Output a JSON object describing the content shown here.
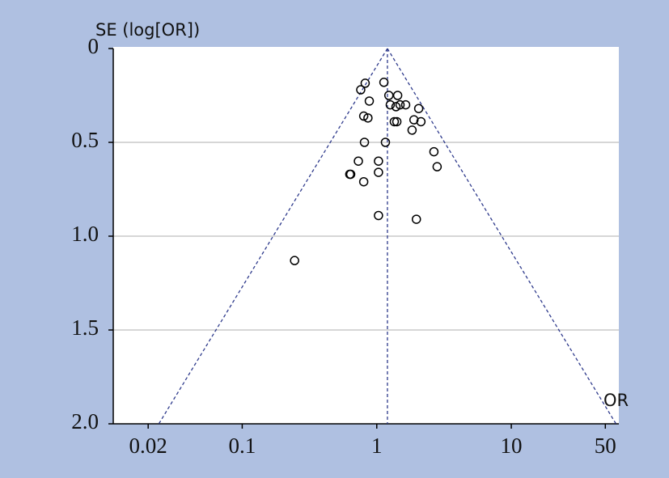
{
  "chart_data": {
    "type": "scatter",
    "ylabel": "SE (log[OR])",
    "xlabel": "OR",
    "x": [
      0.82,
      0.76,
      1.13,
      1.23,
      1.43,
      0.88,
      1.26,
      1.39,
      1.49,
      1.64,
      2.05,
      0.8,
      0.86,
      1.35,
      1.41,
      1.89,
      2.13,
      1.83,
      0.81,
      1.16,
      2.66,
      0.73,
      1.03,
      2.81,
      0.63,
      0.64,
      1.03,
      0.8,
      1.03,
      1.97,
      0.245
    ],
    "y": [
      0.185,
      0.22,
      0.18,
      0.25,
      0.25,
      0.28,
      0.3,
      0.31,
      0.3,
      0.3,
      0.32,
      0.36,
      0.37,
      0.39,
      0.39,
      0.38,
      0.39,
      0.435,
      0.5,
      0.5,
      0.55,
      0.6,
      0.6,
      0.63,
      0.67,
      0.67,
      0.66,
      0.71,
      0.89,
      0.91,
      1.13
    ],
    "color": "#000000",
    "funnel": {
      "apex": [
        1.2,
        0
      ],
      "left": [
        0.024,
        2.0
      ],
      "right": [
        60,
        2.0
      ],
      "color": "#2e3a8c"
    },
    "xscale": "log",
    "xlim": [
      0.011,
      63
    ],
    "xticks": [
      0.02,
      0.1,
      1,
      10,
      50
    ],
    "ylim": [
      2.0,
      0
    ],
    "yticks": [
      0,
      0.5,
      {
        "value": 1.0,
        "label": "1.0"
      },
      1.5,
      {
        "value": 2.0,
        "label": "2.0"
      }
    ],
    "grid": true
  }
}
